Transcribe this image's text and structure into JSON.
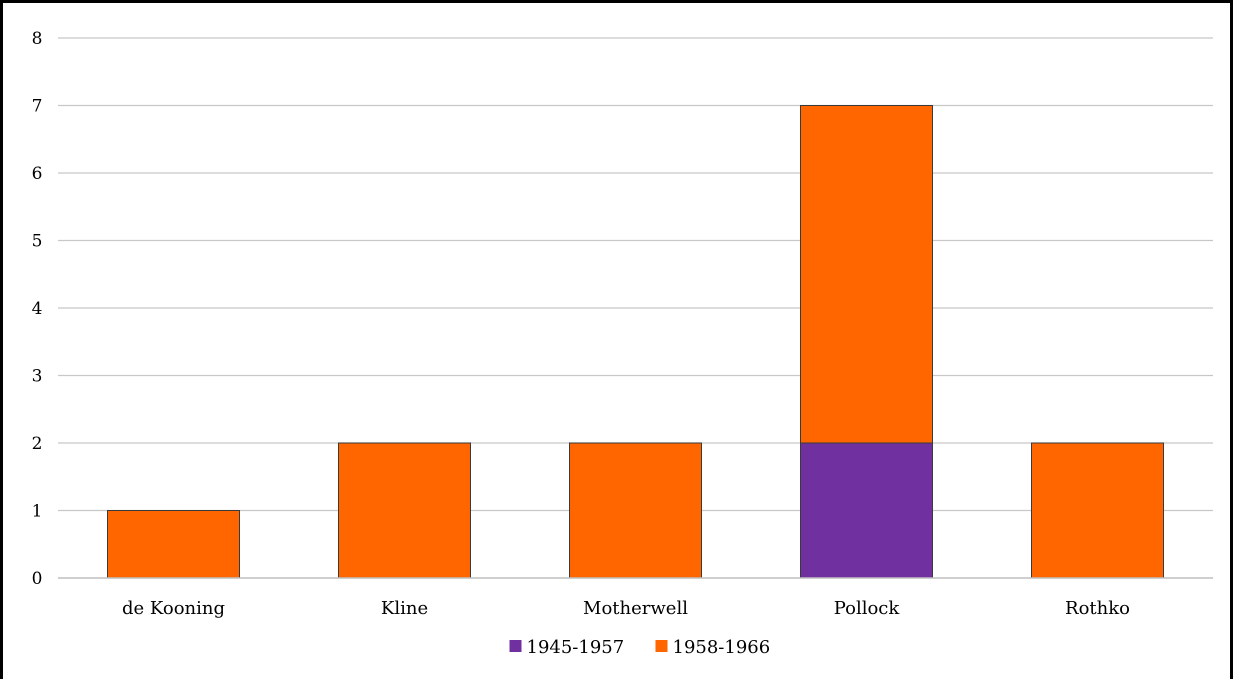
{
  "chart_data": {
    "type": "bar",
    "stacked": true,
    "categories": [
      "de Kooning",
      "Kline",
      "Motherwell",
      "Pollock",
      "Rothko"
    ],
    "series": [
      {
        "name": "1945-1957",
        "values": [
          0,
          0,
          0,
          2,
          0
        ],
        "color": "#7030a0"
      },
      {
        "name": "1958-1966",
        "values": [
          1,
          2,
          2,
          5,
          2
        ],
        "color": "#ff6600"
      }
    ],
    "ylim": [
      0,
      8
    ],
    "yticks": [
      "0",
      "1",
      "2",
      "3",
      "4",
      "5",
      "6",
      "7",
      "8"
    ],
    "grid": true,
    "legend_position": "bottom"
  }
}
